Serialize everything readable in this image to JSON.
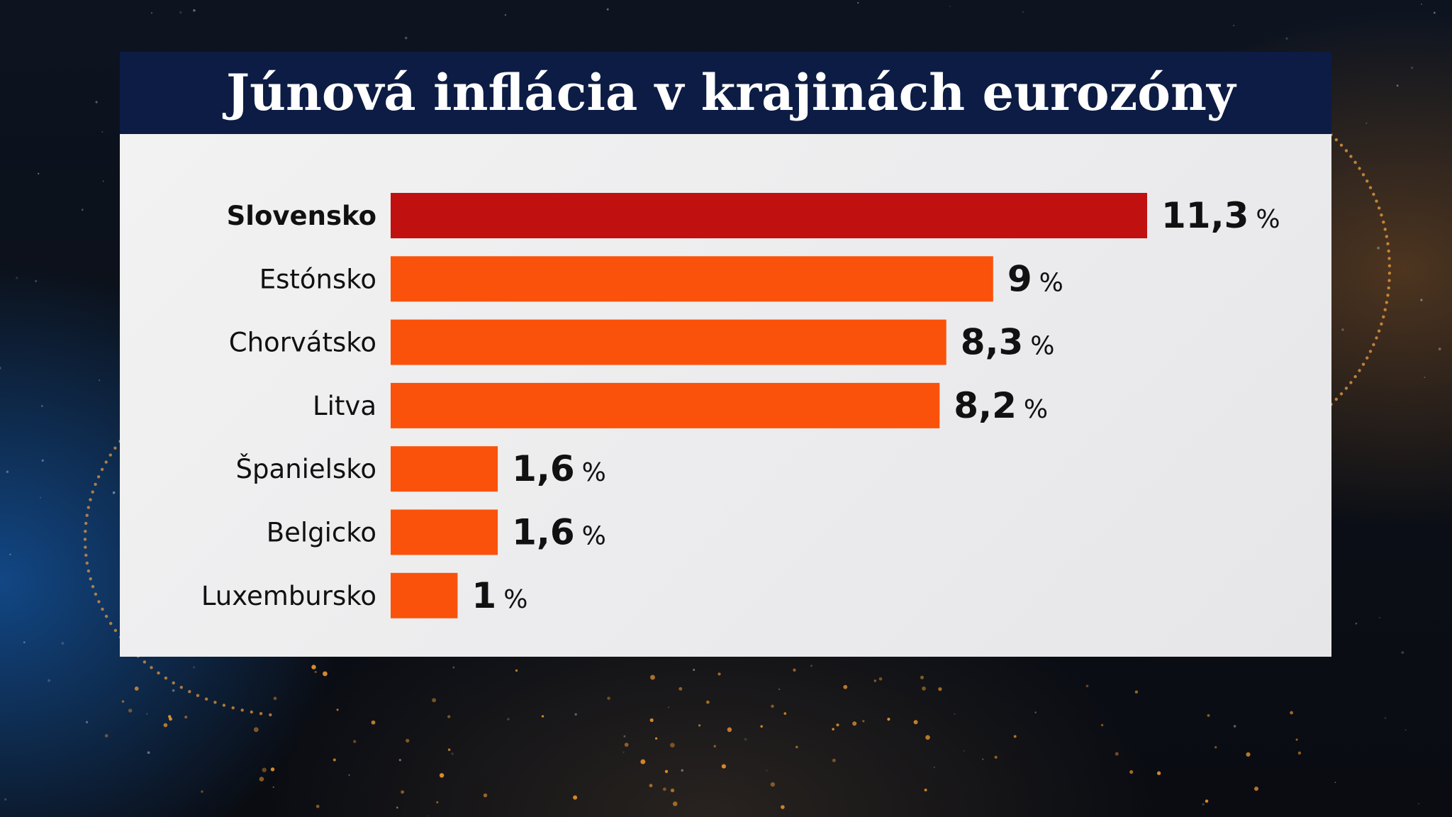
{
  "chart_data": {
    "type": "bar",
    "orientation": "horizontal",
    "title": "Júnová inflácia v krajinách eurozóny",
    "categories": [
      "Slovensko",
      "Estónsko",
      "Chorvátsko",
      "Litva",
      "Španielsko",
      "Belgicko",
      "Luxembursko"
    ],
    "values": [
      11.3,
      9,
      8.3,
      8.2,
      1.6,
      1.6,
      1
    ],
    "value_labels": [
      "11,3",
      "9",
      "8,3",
      "8,2",
      "1,6",
      "1,6",
      "1"
    ],
    "unit": "%",
    "xlim": [
      0,
      11.3
    ],
    "grid": false,
    "legend": "none",
    "colors": {
      "highlight": "#c01010",
      "default": "#fa520a",
      "title_bar": "#0c1c44"
    },
    "highlight_index": 0
  }
}
